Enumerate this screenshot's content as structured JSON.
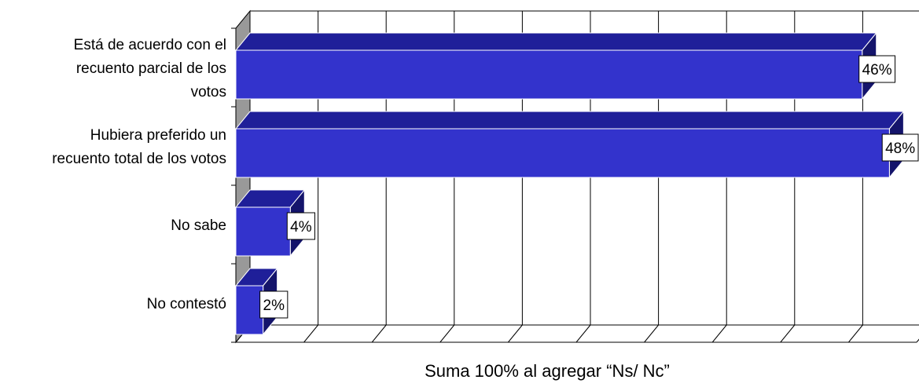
{
  "chart_data": {
    "type": "bar",
    "orientation": "horizontal",
    "three_d": true,
    "categories": [
      "Está de acuerdo con el recuento parcial de los votos",
      "Hubiera preferido un recuento total de los votos",
      "No sabe",
      "No contestó"
    ],
    "category_lines": [
      [
        "Está de acuerdo con el",
        "recuento parcial de los",
        "votos"
      ],
      [
        "Hubiera preferido un",
        "recuento total de los votos"
      ],
      [
        "No sabe"
      ],
      [
        "No contestó"
      ]
    ],
    "values": [
      46,
      48,
      4,
      2
    ],
    "data_labels": [
      "46%",
      "48%",
      "4%",
      "2%"
    ],
    "xlim": [
      0,
      50
    ],
    "grid": true,
    "footnote": "Suma 100% al agregar “Ns/ Nc”",
    "colors": {
      "bar_front": "#3333cc",
      "bar_top": "#1f1f99",
      "bar_side": "#14146b",
      "bar_edge": "#ffffff",
      "wall_side": "#999999",
      "grid": "#000000"
    }
  }
}
